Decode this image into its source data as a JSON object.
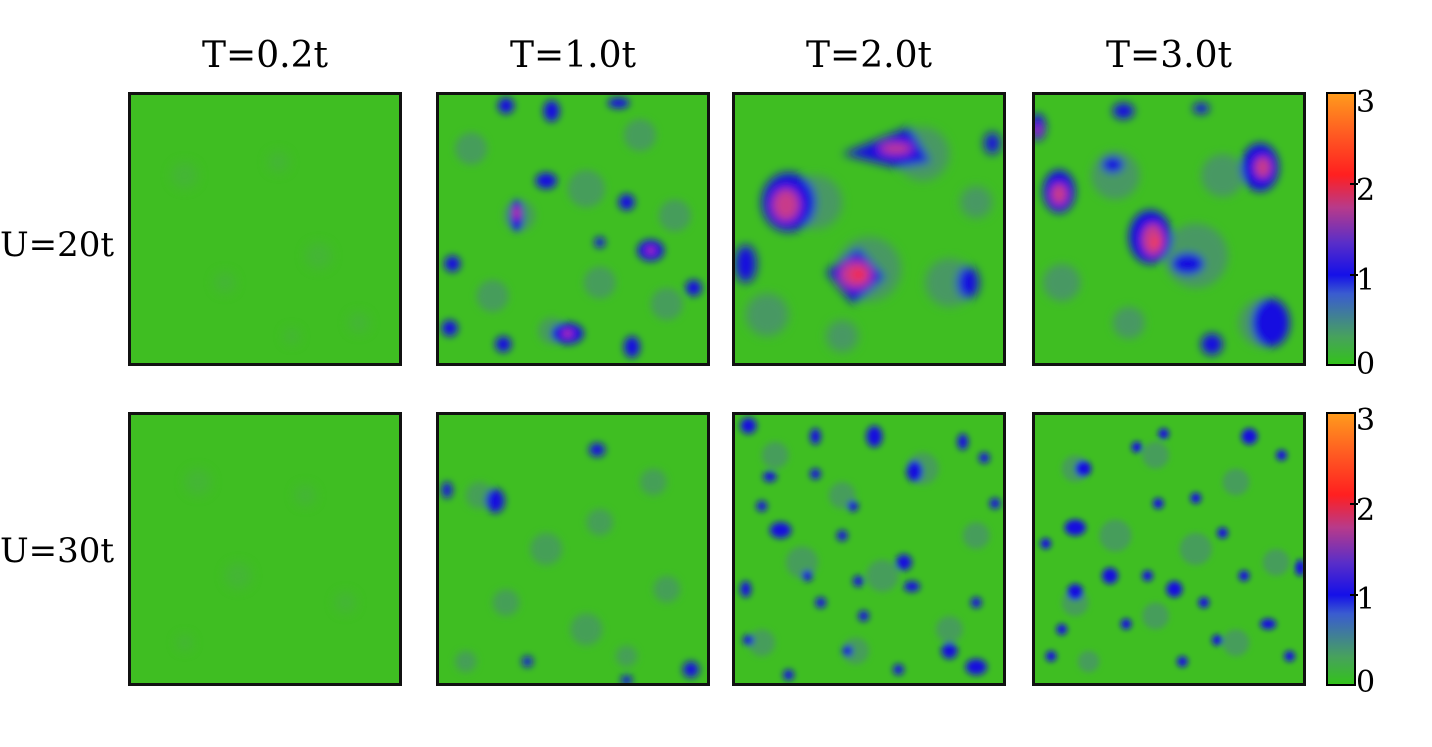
{
  "column_titles": [
    "T=0.2t",
    "T=1.0t",
    "T=2.0t",
    "T=3.0t"
  ],
  "row_titles": [
    "U=20t",
    "U=30t"
  ],
  "colorbar": {
    "ticks": [
      "3",
      "2",
      "1",
      "0"
    ],
    "range": [
      0,
      3
    ]
  },
  "colors": {
    "background": "#3fbe22",
    "low": "#4a9a5e",
    "mid": "#1a14e0",
    "high": "#ff2a2a",
    "top": "#ff9a1c"
  }
}
